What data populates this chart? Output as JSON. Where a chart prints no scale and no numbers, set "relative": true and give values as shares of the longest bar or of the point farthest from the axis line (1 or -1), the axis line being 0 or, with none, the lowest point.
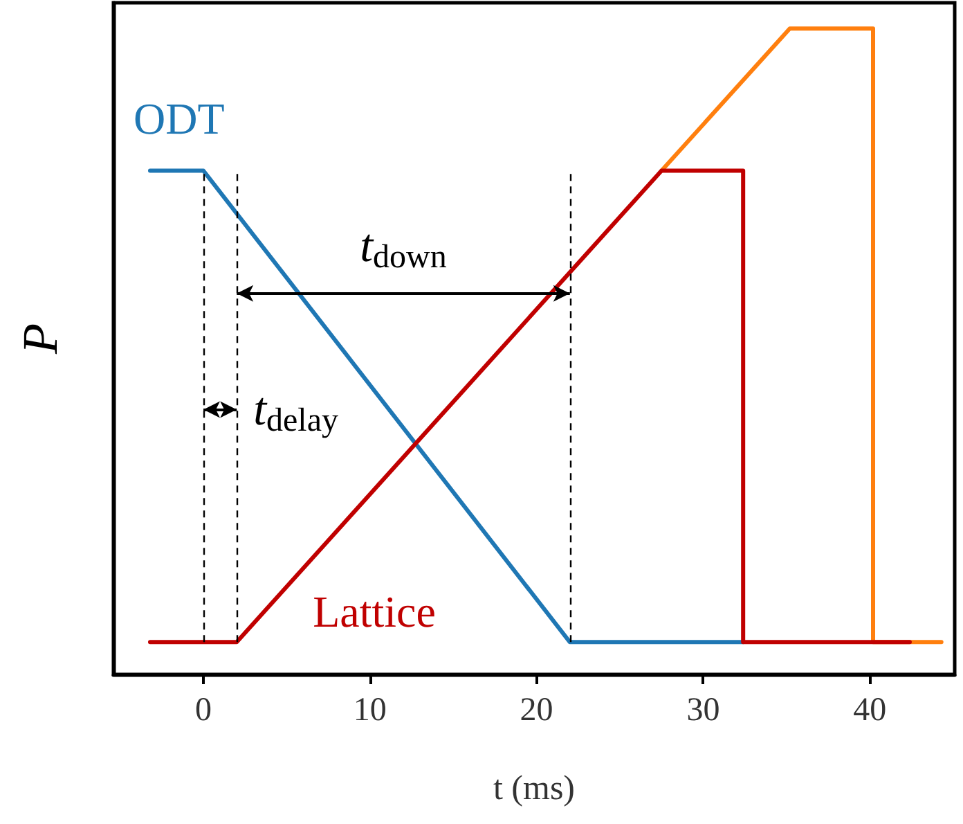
{
  "chart_data": {
    "type": "line",
    "relative": true,
    "xlabel": "t (ms)",
    "ylabel": "P",
    "xlim": [
      -5.4,
      45.1
    ],
    "xticks": [
      0,
      10,
      20,
      30,
      40
    ],
    "series": [
      {
        "color": "#ff7f0e",
        "x": [
          27.5,
          35.2,
          40.2,
          40.2,
          44.3
        ],
        "values": [
          0.78,
          1,
          1,
          0.05,
          0.05
        ]
      },
      {
        "name": "ODT",
        "color": "#1f77b4",
        "x": [
          -3.2,
          0,
          22,
          32.4
        ],
        "values": [
          0.78,
          0.78,
          0.05,
          0.05
        ]
      },
      {
        "name": "Lattice",
        "color": "#c00000",
        "x": [
          -3.2,
          2,
          27.5,
          32.4,
          32.4,
          42.4
        ],
        "values": [
          0.05,
          0.05,
          0.78,
          0.78,
          0.05,
          0.05
        ]
      }
    ],
    "ref_lines": [
      {
        "axis": "x",
        "value": 0,
        "color": "#000000",
        "line_style": "dashed"
      },
      {
        "axis": "x",
        "value": 2,
        "color": "#000000",
        "line_style": "dashed"
      },
      {
        "axis": "x",
        "value": 22,
        "color": "#000000",
        "line_style": "dashed"
      }
    ],
    "annotations": [
      "t$_{down}$",
      "t$_{delay}$"
    ],
    "grid": false,
    "legend": false,
    "marker": "none",
    "line_style": "solid"
  }
}
